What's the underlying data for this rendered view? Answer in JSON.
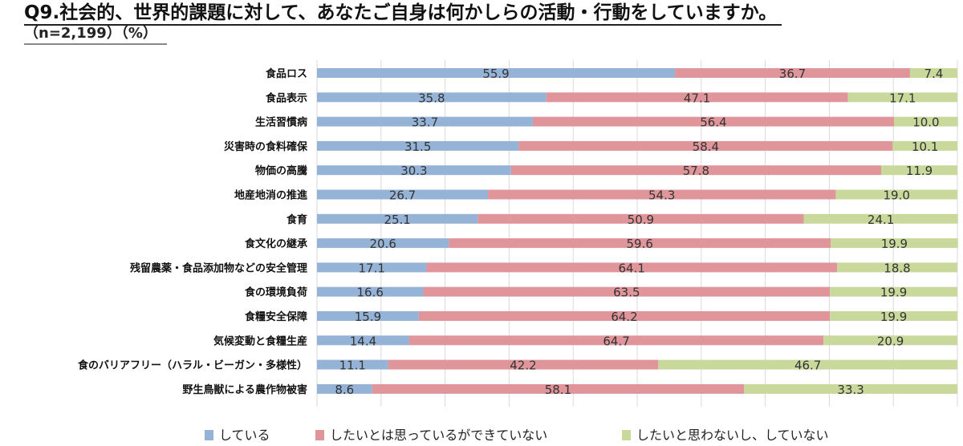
{
  "title": "Q9.社会的、世界的課題に対して、あなたご自身は何かしらの活動・行動をしていますか。",
  "subtitle": "（n=2,199）（%）",
  "chart_data": {
    "type": "bar",
    "orientation": "horizontal",
    "stacked": true,
    "title": "Q9.社会的、世界的課題に対して、あなたご自身は何かしらの活動・行動をしていますか。",
    "xlim": [
      0,
      100
    ],
    "grid": true,
    "legend_position": "bottom",
    "categories": [
      "食品ロス",
      "食品表示",
      "生活習慣病",
      "災害時の食料確保",
      "物価の高騰",
      "地産地消の推進",
      "食育",
      "食文化の継承",
      "残留農薬・食品添加物などの安全管理",
      "食の環境負荷",
      "食糧安全保障",
      "気候変動と食糧生産",
      "食のバリアフリー（ハラル・ビーガン・多様性）",
      "野生鳥獣による農作物被害"
    ],
    "series": [
      {
        "name": "している",
        "color": "#95b3d7",
        "values": [
          55.9,
          35.8,
          33.7,
          31.5,
          30.3,
          26.7,
          25.1,
          20.6,
          17.1,
          16.6,
          15.9,
          14.4,
          11.1,
          8.6
        ]
      },
      {
        "name": "したいとは思っているができていない",
        "color": "#e0959b",
        "values": [
          36.7,
          47.1,
          56.4,
          58.4,
          57.8,
          54.3,
          50.9,
          59.6,
          64.1,
          63.5,
          64.2,
          64.7,
          42.2,
          58.1
        ]
      },
      {
        "name": "したいと思わないし、していない",
        "color": "#c9d99c",
        "values": [
          7.4,
          17.1,
          10.0,
          10.1,
          11.9,
          19.0,
          24.1,
          19.9,
          18.8,
          19.9,
          19.9,
          20.9,
          46.7,
          33.3
        ]
      }
    ]
  }
}
